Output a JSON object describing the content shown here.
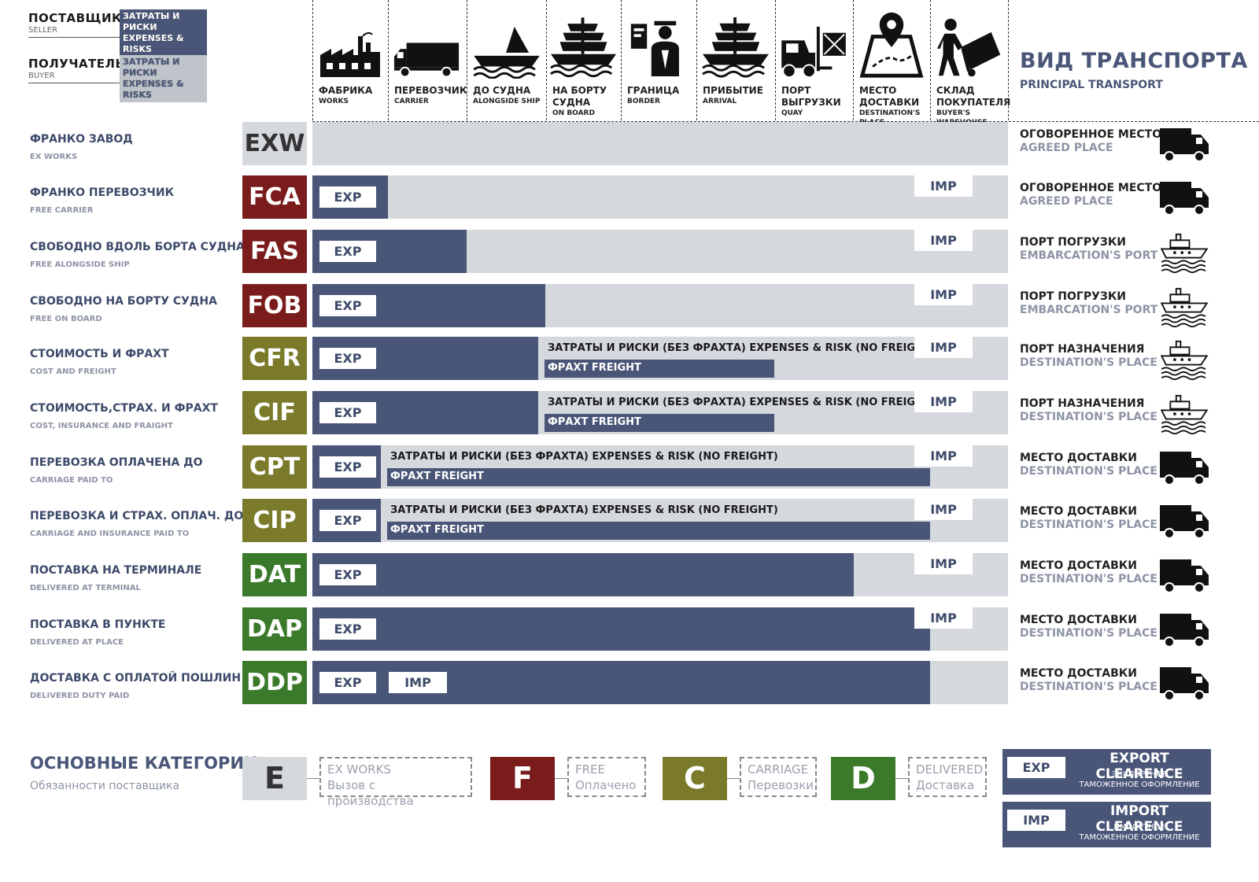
{
  "header": {
    "seller_ru": "ПОСТАВЩИК",
    "seller_en": "SELLER",
    "buyer_ru": "ПОЛУЧАТЕЛЬ",
    "buyer_en": "BUYER",
    "box_ru": "ЗАТРАТЫ И РИСКИ",
    "box_en": "EXPENSES & RISKS",
    "transport_ru": "ВИД ТРАНСПОРТА",
    "transport_en": "PRINCIPAL TRANSPORT"
  },
  "columns": [
    {
      "ru": "ФАБРИКА",
      "en": "WORKS",
      "icon": "factory-icon"
    },
    {
      "ru": "ПЕРЕВОЗЧИК",
      "en": "CARRIER",
      "icon": "truck-icon"
    },
    {
      "ru": "ДО СУДНА",
      "en": "ALONGSIDE SHIP",
      "icon": "boat-icon"
    },
    {
      "ru": "НА БОРТУ СУДНА",
      "en": "ON BOARD",
      "icon": "ship-icon"
    },
    {
      "ru": "ГРАНИЦА",
      "en": "BORDER",
      "icon": "border-officer-icon"
    },
    {
      "ru": "ПРИБЫТИЕ",
      "en": "ARRIVAL",
      "icon": "ship-icon"
    },
    {
      "ru": "ПОРТ ВЫГРУЗКИ",
      "en": "QUAY",
      "icon": "forklift-icon"
    },
    {
      "ru": "МЕСТО ДОСТАВКИ",
      "en": "DESTINATION'S PLACE",
      "icon": "map-pin-icon"
    },
    {
      "ru": "СКЛАД ПОКУПАТЕЛЯ",
      "en": "BUYER'S WAREHOUSE",
      "icon": "hand-truck-icon"
    }
  ],
  "labels": {
    "exp": "EXP",
    "imp": "IMP",
    "cost": "ЗАТРАТЫ И РИСКИ (БЕЗ ФРАХТА) EXPENSES & RISK (NO FREIGHT)",
    "freight": "ФРАХТ FREIGHT"
  },
  "rows": [
    {
      "code": "EXW",
      "ru": "ФРАНКО ЗАВОД",
      "en": "EX WORKS",
      "dest_ru": "ОГОВОРЕННОЕ МЕСТО",
      "dest_en": "AGREED PLACE",
      "icon": "truck-icon",
      "category": "E"
    },
    {
      "code": "FCA",
      "ru": "ФРАНКО ПЕРЕВОЗЧИК",
      "en": "FREE CARRIER",
      "dest_ru": "ОГОВОРЕННОЕ МЕСТО",
      "dest_en": "AGREED PLACE",
      "icon": "truck-icon",
      "category": "F"
    },
    {
      "code": "FAS",
      "ru": "СВОБОДНО ВДОЛЬ БОРТА СУДНА",
      "en": "FREE ALONGSIDE SHIP",
      "dest_ru": "ПОРТ ПОГРУЗКИ",
      "dest_en": "EMBARCATION'S PORT",
      "icon": "ship-icon",
      "category": "F"
    },
    {
      "code": "FOB",
      "ru": "СВОБОДНО НА БОРТУ СУДНА",
      "en": "FREE ON BOARD",
      "dest_ru": "ПОРТ ПОГРУЗКИ",
      "dest_en": "EMBARCATION'S PORT",
      "icon": "ship-icon",
      "category": "F"
    },
    {
      "code": "CFR",
      "ru": "СТОИМОСТЬ И ФРАХТ",
      "en": "COST AND FREIGHT",
      "dest_ru": "ПОРТ НАЗНАЧЕНИЯ",
      "dest_en": "DESTINATION'S PLACE",
      "icon": "ship-icon",
      "category": "C"
    },
    {
      "code": "CIF",
      "ru": "СТОИМОСТЬ,СТРАХ. И ФРАХТ",
      "en": "COST, INSURANCE AND FRAIGHT",
      "dest_ru": "ПОРТ НАЗНАЧЕНИЯ",
      "dest_en": "DESTINATION'S PLACE",
      "icon": "ship-icon",
      "category": "C"
    },
    {
      "code": "CPT",
      "ru": "ПЕРЕВОЗКА ОПЛАЧЕНА ДО",
      "en": "CARRIAGE PAID TO",
      "dest_ru": "МЕСТО ДОСТАВКИ",
      "dest_en": "DESTINATION'S PLACE",
      "icon": "truck-icon",
      "category": "C"
    },
    {
      "code": "CIP",
      "ru": "ПЕРЕВОЗКА И СТРАХ. ОПЛАЧ. ДО",
      "en": "CARRIAGE AND INSURANCE PAID TO",
      "dest_ru": "МЕСТО ДОСТАВКИ",
      "dest_en": "DESTINATION'S PLACE",
      "icon": "truck-icon",
      "category": "C"
    },
    {
      "code": "DAT",
      "ru": "ПОСТАВКА НА ТЕРМИНАЛЕ",
      "en": "DELIVERED AT TERMINAL",
      "dest_ru": "МЕСТО ДОСТАВКИ",
      "dest_en": "DESTINATION'S PLACE",
      "icon": "truck-icon",
      "category": "D"
    },
    {
      "code": "DAP",
      "ru": "ПОСТАВКА В ПУНКТЕ",
      "en": "DELIVERED AT PLACE",
      "dest_ru": "МЕСТО ДОСТАВКИ",
      "dest_en": "DESTINATION'S PLACE",
      "icon": "truck-icon",
      "category": "D"
    },
    {
      "code": "DDP",
      "ru": "ДОСТАВКА С ОПЛАТОЙ ПОШЛИН",
      "en": "DELIVERED DUTY PAID",
      "dest_ru": "МЕСТО ДОСТАВКИ",
      "dest_en": "DESTINATION'S PLACE",
      "icon": "truck-icon",
      "category": "D"
    }
  ],
  "legend": {
    "title": "ОСНОВНЫЕ КАТЕГОРИИ",
    "subtitle": "Обязанности поставщика",
    "categories": [
      {
        "letter": "E",
        "en": "EX WORKS",
        "ru": "Вызов с производства"
      },
      {
        "letter": "F",
        "en": "FREE",
        "ru": "Оплачено"
      },
      {
        "letter": "C",
        "en": "CARRIAGE",
        "ru": "Перевозки"
      },
      {
        "letter": "D",
        "en": "DELIVERED",
        "ru": "Доставка"
      }
    ],
    "export": {
      "tag": "EXP",
      "title": "EXPORT CLEARENCE",
      "sub1": "ЭКСПОРТНОЕ",
      "sub2": "ТАМОЖЕННОЕ ОФОРМЛЕНИЕ"
    },
    "import": {
      "tag": "IMP",
      "title": "IMPORT CLEARENCE",
      "sub1": "ИМПОРТНОЕ",
      "sub2": "ТАМОЖЕННОЕ ОФОРМЛЕНИЕ"
    }
  },
  "colors": {
    "E": "#d5d8dd",
    "F": "#7a1c1c",
    "C": "#7a7a2a",
    "D": "#3a7a2a",
    "dark": "#4a5678",
    "light": "#d5d8dd"
  }
}
